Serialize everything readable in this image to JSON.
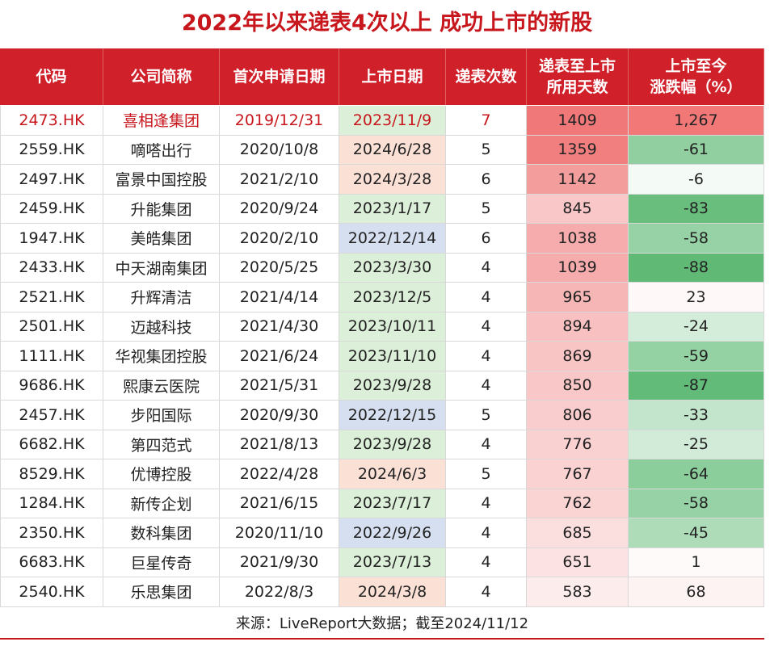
{
  "title": "2022年以来递表4次以上 成功上市的新股",
  "table": {
    "headers": [
      [
        "代码"
      ],
      [
        "公司简称"
      ],
      [
        "首次申请日期"
      ],
      [
        "上市日期"
      ],
      [
        "递表次数"
      ],
      [
        "递表至上市",
        "所用天数"
      ],
      [
        "上市至今",
        "涨跌幅（%）"
      ]
    ],
    "listing_date_colors": [
      "#dcefd8",
      "#fbe0d6",
      "#fbe0d6",
      "#dcefd8",
      "#d6dff0",
      "#dcefd8",
      "#dcefd8",
      "#dcefd8",
      "#dcefd8",
      "#dcefd8",
      "#d6dff0",
      "#dcefd8",
      "#fbe0d6",
      "#dcefd8",
      "#d6dff0",
      "#dcefd8",
      "#fbe0d6"
    ],
    "highlight_color": "#c8161d",
    "rows": [
      [
        "2473.HK",
        "喜相逢集团",
        "2019/12/31",
        "2023/11/9",
        7,
        1409,
        {
          "value": 1267,
          "label": "1,267"
        }
      ],
      [
        "2559.HK",
        "嘀嗒出行",
        "2020/10/8",
        "2024/6/28",
        5,
        1359,
        -61
      ],
      [
        "2497.HK",
        "富景中国控股",
        "2021/2/10",
        "2024/3/28",
        6,
        1142,
        -6
      ],
      [
        "2459.HK",
        "升能集团",
        "2020/9/24",
        "2023/1/17",
        5,
        845,
        -83
      ],
      [
        "1947.HK",
        "美皓集团",
        "2020/2/10",
        "2022/12/14",
        6,
        1038,
        -58
      ],
      [
        "2433.HK",
        "中天湖南集团",
        "2020/5/25",
        "2023/3/30",
        4,
        1039,
        -88
      ],
      [
        "2521.HK",
        "升辉清洁",
        "2021/4/14",
        "2023/12/5",
        4,
        965,
        23
      ],
      [
        "2501.HK",
        "迈越科技",
        "2021/4/30",
        "2023/10/11",
        4,
        894,
        -24
      ],
      [
        "1111.HK",
        "华视集团控股",
        "2021/6/24",
        "2023/11/10",
        4,
        869,
        -59
      ],
      [
        "9686.HK",
        "熙康云医院",
        "2021/5/31",
        "2023/9/28",
        4,
        850,
        -87
      ],
      [
        "2457.HK",
        "步阳国际",
        "2020/9/30",
        "2022/12/15",
        5,
        806,
        -33
      ],
      [
        "6682.HK",
        "第四范式",
        "2021/8/13",
        "2023/9/28",
        4,
        776,
        -25
      ],
      [
        "8529.HK",
        "优博控股",
        "2022/4/28",
        "2024/6/3",
        5,
        767,
        -64
      ],
      [
        "1284.HK",
        "新传企划",
        "2021/6/15",
        "2023/7/17",
        4,
        762,
        -58
      ],
      [
        "2350.HK",
        "数科集团",
        "2020/11/10",
        "2022/9/26",
        4,
        685,
        -45
      ],
      [
        "6683.HK",
        "巨星传奇",
        "2021/9/30",
        "2023/7/13",
        4,
        651,
        1
      ],
      [
        "2540.HK",
        "乐思集团",
        "2022/8/3",
        "2024/3/8",
        4,
        583,
        68
      ]
    ]
  },
  "source": "来源：LiveReport大数据；截至2024/11/12"
}
